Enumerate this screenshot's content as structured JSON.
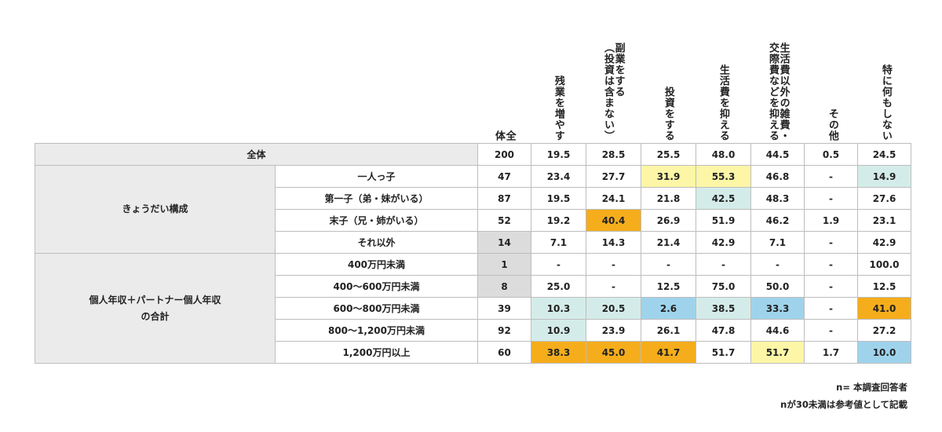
{
  "chart_data": {
    "type": "table",
    "columns": [
      {
        "label": "全\n体"
      },
      {
        "label": "残業を増やす"
      },
      {
        "label": "副業をする\n（投資は含まない）"
      },
      {
        "label": "投資をする"
      },
      {
        "label": "生活費を抑える"
      },
      {
        "label": "生活費以外の雑費・\n交際費などを抑える"
      },
      {
        "label": "その他"
      },
      {
        "label": "特に何もしない"
      }
    ],
    "total_row": {
      "label": "全体",
      "values": [
        "200",
        "19.5",
        "28.5",
        "25.5",
        "48.0",
        "44.5",
        "0.5",
        "24.5"
      ],
      "colors": [
        "",
        "",
        "",
        "",
        "",
        "",
        "",
        ""
      ]
    },
    "groups": [
      {
        "label": "きょうだい構成",
        "rows": [
          {
            "label": "一人っ子",
            "values": [
              "47",
              "23.4",
              "27.7",
              "31.9",
              "55.3",
              "46.8",
              "-",
              "14.9"
            ],
            "colors": [
              "",
              "",
              "",
              "yellow",
              "yellow",
              "",
              "",
              "mint"
            ]
          },
          {
            "label": "第一子（弟・妹がいる）",
            "values": [
              "87",
              "19.5",
              "24.1",
              "21.8",
              "42.5",
              "48.3",
              "-",
              "27.6"
            ],
            "colors": [
              "",
              "",
              "",
              "",
              "mint",
              "",
              "",
              ""
            ]
          },
          {
            "label": "末子（兄・姉がいる）",
            "values": [
              "52",
              "19.2",
              "40.4",
              "26.9",
              "51.9",
              "46.2",
              "1.9",
              "23.1"
            ],
            "colors": [
              "",
              "",
              "orange",
              "",
              "",
              "",
              "",
              ""
            ]
          },
          {
            "label": "それ以外",
            "values": [
              "14",
              "7.1",
              "14.3",
              "21.4",
              "42.9",
              "7.1",
              "-",
              "42.9"
            ],
            "colors": [
              "gray",
              "",
              "",
              "",
              "",
              "",
              "",
              ""
            ]
          }
        ]
      },
      {
        "label": "個人年収＋パートナー個人年収\nの合計",
        "rows": [
          {
            "label": "400万円未満",
            "values": [
              "1",
              "-",
              "-",
              "-",
              "-",
              "-",
              "-",
              "100.0"
            ],
            "colors": [
              "gray",
              "",
              "",
              "",
              "",
              "",
              "",
              ""
            ]
          },
          {
            "label": "400〜600万円未満",
            "values": [
              "8",
              "25.0",
              "-",
              "12.5",
              "75.0",
              "50.0",
              "-",
              "12.5"
            ],
            "colors": [
              "gray",
              "",
              "",
              "",
              "",
              "",
              "",
              ""
            ]
          },
          {
            "label": "600〜800万円未満",
            "values": [
              "39",
              "10.3",
              "20.5",
              "2.6",
              "38.5",
              "33.3",
              "-",
              "41.0"
            ],
            "colors": [
              "",
              "mint",
              "mint",
              "blue",
              "mint",
              "blue",
              "",
              "orange"
            ]
          },
          {
            "label": "800〜1,200万円未満",
            "values": [
              "92",
              "10.9",
              "23.9",
              "26.1",
              "47.8",
              "44.6",
              "-",
              "27.2"
            ],
            "colors": [
              "",
              "mint",
              "",
              "",
              "",
              "",
              "",
              ""
            ]
          },
          {
            "label": "1,200万円以上",
            "values": [
              "60",
              "38.3",
              "45.0",
              "41.7",
              "51.7",
              "51.7",
              "1.7",
              "10.0"
            ],
            "colors": [
              "",
              "orange",
              "orange",
              "orange",
              "",
              "yellow",
              "",
              "blue"
            ]
          }
        ]
      }
    ],
    "highlight_colors": {
      "orange": "#f5ad1c",
      "yellow": "#fcf6a6",
      "mint": "#d4ece9",
      "blue": "#9fd3ec",
      "gray": "#dcdcdc"
    }
  },
  "notes": [
    "n= 本調査回答者",
    "nが30未満は参考値として記載"
  ]
}
